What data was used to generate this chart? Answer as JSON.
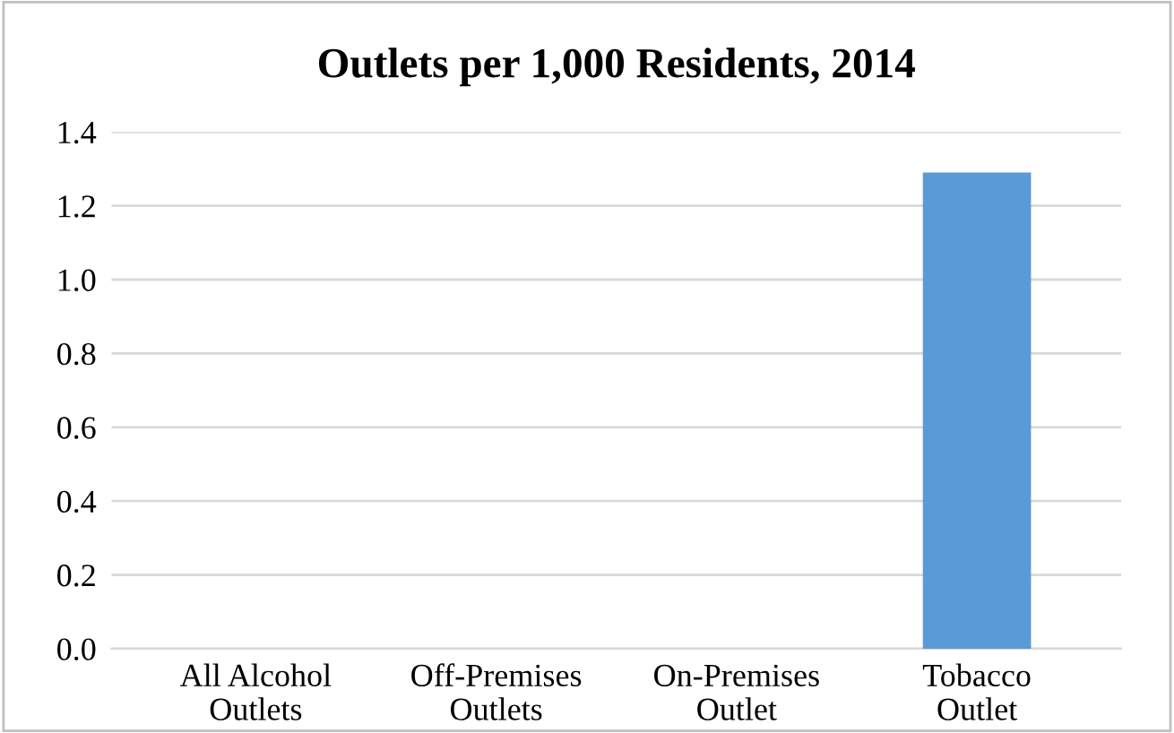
{
  "chart_data": {
    "type": "bar",
    "title": "Outlets per 1,000 Residents, 2014",
    "categories": [
      "All Alcohol\nOutlets",
      "Off-Premises\nOutlets",
      "On-Premises\nOutlet",
      "Tobacco\nOutlet"
    ],
    "values": [
      null,
      null,
      null,
      1.29
    ],
    "color": "#5b9bd5",
    "ylim": [
      0,
      1.4
    ],
    "yticks": [
      {
        "value": 0,
        "label": "0.0"
      },
      {
        "value": 0.2,
        "label": "0.2"
      },
      {
        "value": 0.4,
        "label": "0.4"
      },
      {
        "value": 0.6,
        "label": "0.6"
      },
      {
        "value": 0.8,
        "label": "0.8"
      },
      {
        "value": 1.0,
        "label": "1.0"
      },
      {
        "value": 1.2,
        "label": "1.2"
      },
      {
        "value": 1.4,
        "label": "1.4"
      }
    ],
    "grid": "y"
  }
}
